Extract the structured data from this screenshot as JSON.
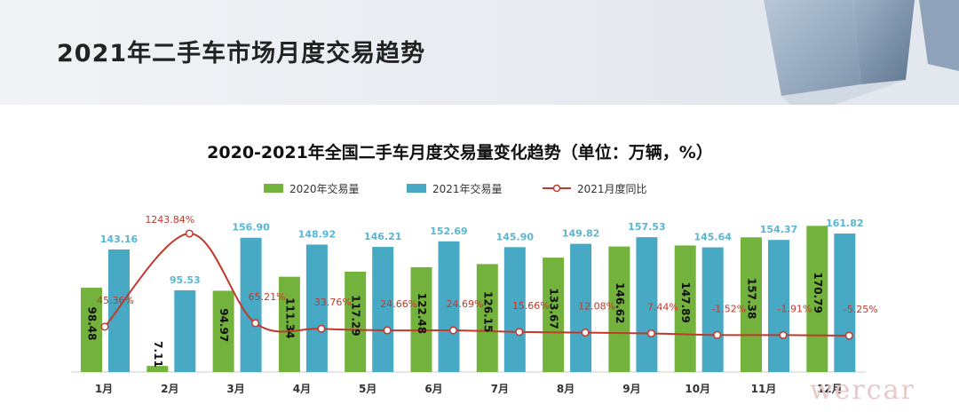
{
  "header": {
    "title": "2021年二手车市场月度交易趋势"
  },
  "watermark": "wercar",
  "chart_data": {
    "type": "bar",
    "title": "2020-2021年全国二手车月度交易量变化趋势（单位：万辆，%）",
    "categories": [
      "1月",
      "2月",
      "3月",
      "4月",
      "5月",
      "6月",
      "7月",
      "8月",
      "9月",
      "10月",
      "11月",
      "12月"
    ],
    "series": [
      {
        "name": "2020年交易量",
        "type": "bar",
        "color": "#72b23d",
        "values": [
          98.48,
          7.11,
          94.97,
          111.34,
          117.29,
          122.48,
          126.15,
          133.67,
          146.62,
          147.89,
          157.38,
          170.79
        ],
        "labels": [
          "98.48",
          "7.11",
          "94.97",
          "111.34",
          "117.29",
          "122.48",
          "126.15",
          "133.67",
          "146.62",
          "147.89",
          "157.38",
          "170.79"
        ]
      },
      {
        "name": "2021年交易量",
        "type": "bar",
        "color": "#48a9c5",
        "values": [
          143.16,
          95.53,
          156.9,
          148.92,
          146.21,
          152.69,
          145.9,
          149.82,
          157.53,
          145.64,
          154.37,
          161.82
        ],
        "labels": [
          "143.16",
          "95.53",
          "156.90",
          "148.92",
          "146.21",
          "152.69",
          "145.90",
          "149.82",
          "157.53",
          "145.64",
          "154.37",
          "161.82"
        ]
      },
      {
        "name": "2021月度同比",
        "type": "line",
        "color": "#c0392b",
        "values": [
          45.36,
          1243.84,
          65.21,
          33.76,
          24.66,
          24.69,
          15.66,
          12.08,
          7.44,
          -1.52,
          -1.91,
          -5.25
        ],
        "labels": [
          "45.36%",
          "1243.84%",
          "65.21%",
          "33.76%",
          "24.66%",
          "24.69%",
          "15.66%",
          "12.08%",
          "7.44%",
          "-1.52%",
          "-1.91%",
          "-5.25%"
        ]
      }
    ],
    "legend_position": "top-center",
    "grid": false
  }
}
